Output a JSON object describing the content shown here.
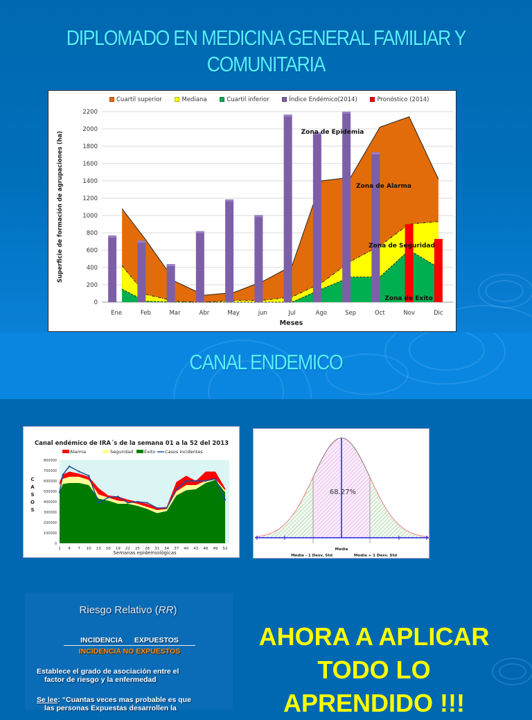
{
  "slide1": {
    "title_line1": "DIPLOMADO EN MEDICINA GENERAL FAMILIAR Y",
    "title_line2": "COMUNITARIA"
  },
  "slide2": {
    "title": "CANAL ENDEMICO"
  },
  "slide3": {
    "ira_chart_title": "Canal endémico de IRA´s de la semana 01 a la 52 del 2013",
    "normal_curve": {
      "center_label": "68.27%",
      "label_media": "Media",
      "label_minus": "Media - 1 Desv. Std",
      "label_plus": "Media + 1 Desv. Std"
    }
  },
  "slide4": {
    "rr_title": "Riesgo Relativo (",
    "rr_title_italic": "RR",
    "rr_title_end": ")",
    "numerator": "INCIDENCIA EXPUESTOS",
    "denominator": "INCIDENCIA NO EXPUESTOS",
    "para1_line1": "Establece el grado de asociación entre el",
    "para1_line2": "factor de riesgo y la enfermedad",
    "para2_label": "Se lee",
    "para2_line1": ": “Cuantas veces mas probable es que",
    "para2_line2": "las personas Expuestas desarrollen la",
    "callout_line1": "AHORA  A  APLICAR",
    "callout_line2": "TODO LO",
    "callout_line3": "APRENDIDO !!!"
  },
  "colors": {
    "title_cyan": "#55f0ff",
    "cuartil_superior": "#e36c0a",
    "mediana": "#ffff00",
    "cuartil_inferior": "#00b050",
    "indice_endemico": "#8064a2",
    "pronostico": "#ff0000",
    "callout_yellow": "#ffff00",
    "background_blue": "#0068b0"
  },
  "chart_data": [
    {
      "type": "area+bar",
      "title": "",
      "xlabel": "Meses",
      "ylabel": "Superficie de formación de agrupaciones (ha)",
      "ylim": [
        0,
        2200
      ],
      "yticks": [
        0,
        200,
        400,
        600,
        800,
        1000,
        1200,
        1400,
        1600,
        1800,
        2000,
        2200
      ],
      "grid": true,
      "legend_position": "top",
      "categories": [
        "Ene",
        "Feb",
        "Mar",
        "Abr",
        "May",
        "jun",
        "Jul",
        "Ago",
        "Sep",
        "Oct",
        "Nov",
        "Dic"
      ],
      "series": [
        {
          "name": "Cuartil superior",
          "kind": "area",
          "values": [
            1080,
            720,
            240,
            80,
            110,
            240,
            420,
            1400,
            1440,
            2020,
            2140,
            1420
          ]
        },
        {
          "name": "Mediana",
          "kind": "area",
          "values": [
            420,
            90,
            10,
            0,
            20,
            20,
            60,
            220,
            470,
            650,
            900,
            930
          ]
        },
        {
          "name": "Cuartil inferior",
          "kind": "area",
          "values": [
            150,
            10,
            0,
            0,
            0,
            0,
            0,
            150,
            290,
            290,
            600,
            400
          ]
        },
        {
          "name": "Índice Endémico(2014)",
          "kind": "bar",
          "values": [
            770,
            710,
            440,
            820,
            1185,
            1005,
            2165,
            1960,
            2200,
            1730,
            null,
            null
          ]
        },
        {
          "name": "Pronóstico (2014)",
          "kind": "bar",
          "values": [
            null,
            null,
            null,
            null,
            null,
            null,
            null,
            null,
            null,
            null,
            900,
            730
          ]
        }
      ],
      "legend": [
        "Cuartil superior",
        "Mediana",
        "Cuartil inferior",
        "Índice Endémico(2014)",
        "Pronóstico (2014)"
      ],
      "annotations": [
        "Zona de Epidemia",
        "Zona de Alarma",
        "Zona de Seguridad",
        "Zona de Exito"
      ]
    },
    {
      "type": "area+line",
      "title": "Canal endémico de IRA´s de la semana 01 a la 52 del 2013",
      "xlabel": "Semanas epidemiológicas",
      "ylabel": "CASOS",
      "ylim": [
        0,
        800000
      ],
      "yticks": [
        0,
        100000,
        200000,
        300000,
        400000,
        500000,
        600000,
        700000,
        800000
      ],
      "xticks": [
        1,
        4,
        7,
        10,
        13,
        16,
        19,
        22,
        25,
        28,
        31,
        34,
        37,
        40,
        43,
        46,
        49,
        52
      ],
      "legend": [
        "Alarma",
        "Seguridad",
        "Éxito",
        "Casos incidentes"
      ],
      "legend_position": "top",
      "series": [
        {
          "name": "Éxito",
          "x": [
            1,
            2,
            4,
            7,
            10,
            13,
            16,
            19,
            22,
            25,
            28,
            31,
            34,
            37,
            40,
            43,
            46,
            49,
            52
          ],
          "values": [
            490000,
            570000,
            580000,
            580000,
            560000,
            430000,
            410000,
            380000,
            380000,
            360000,
            330000,
            290000,
            310000,
            460000,
            510000,
            520000,
            580000,
            610000,
            490000
          ]
        },
        {
          "name": "Seguridad",
          "x": [
            1,
            2,
            4,
            7,
            10,
            13,
            16,
            19,
            22,
            25,
            28,
            31,
            34,
            37,
            40,
            43,
            46,
            49,
            52
          ],
          "values": [
            560000,
            620000,
            640000,
            640000,
            610000,
            470000,
            440000,
            410000,
            400000,
            380000,
            350000,
            320000,
            330000,
            500000,
            560000,
            560000,
            600000,
            620000,
            510000
          ]
        },
        {
          "name": "Alarma",
          "x": [
            1,
            2,
            4,
            7,
            10,
            13,
            16,
            19,
            22,
            25,
            28,
            31,
            34,
            37,
            40,
            43,
            46,
            49,
            52
          ],
          "values": [
            590000,
            660000,
            690000,
            670000,
            640000,
            530000,
            460000,
            450000,
            420000,
            400000,
            380000,
            340000,
            350000,
            590000,
            650000,
            600000,
            690000,
            690000,
            530000
          ]
        },
        {
          "name": "Casos incidentes",
          "x": [
            1,
            2,
            4,
            7,
            10,
            13,
            16,
            19,
            22,
            25,
            28,
            31,
            34,
            37,
            40,
            43,
            46,
            49,
            52
          ],
          "values": [
            490000,
            660000,
            740000,
            690000,
            650000,
            390000,
            440000,
            450000,
            390000,
            400000,
            390000,
            340000,
            340000,
            520000,
            600000,
            600000,
            600000,
            620000,
            420000
          ]
        }
      ]
    },
    {
      "type": "area",
      "title": "",
      "description": "Normal distribution curve with shaded ±1 SD region",
      "annotations": [
        "68.27%",
        "Media",
        "Media - 1 Desv. Std",
        "Media + 1 Desv. Std"
      ]
    }
  ]
}
